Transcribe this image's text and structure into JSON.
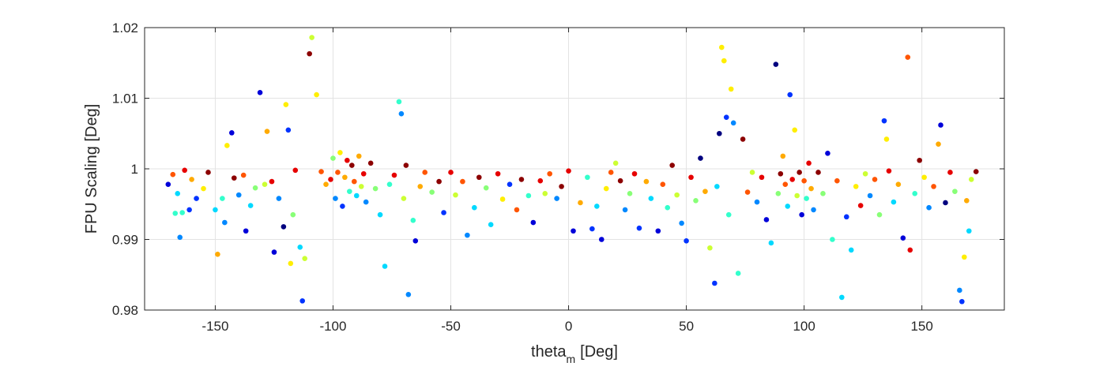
{
  "chart_data": {
    "type": "scatter",
    "title": "",
    "xlabel": "theta",
    "xlabel_subscript": "m",
    "xlabel_unit": "[Deg]",
    "ylabel": "FPU Scaling [Deg]",
    "xlim": [
      -180,
      185
    ],
    "ylim": [
      0.98,
      1.02
    ],
    "xticks": [
      -150,
      -100,
      -50,
      0,
      50,
      100,
      150
    ],
    "xtick_labels": [
      "-150",
      "-100",
      "-50",
      "0",
      "50",
      "100",
      "150"
    ],
    "yticks": [
      0.98,
      0.99,
      1.0,
      1.01,
      1.02
    ],
    "ytick_labels": [
      "0.98",
      "0.99",
      "1",
      "1.01",
      "1.02"
    ],
    "grid": true,
    "legend": "none",
    "colormap": "jet",
    "colors": [
      "#00007f",
      "#0000d9",
      "#0033ff",
      "#0088ff",
      "#00d9ff",
      "#33ffcc",
      "#88ff77",
      "#ccff33",
      "#ffee00",
      "#ffaa00",
      "#ff5500",
      "#e60000",
      "#8c0000"
    ],
    "points": [
      [
        -170,
        0.9978,
        1
      ],
      [
        -168,
        0.9992,
        10
      ],
      [
        -166,
        0.9965,
        4
      ],
      [
        -165,
        0.9903,
        3
      ],
      [
        -164,
        0.9938,
        5
      ],
      [
        -163,
        0.9998,
        11
      ],
      [
        -160,
        0.9985,
        9
      ],
      [
        -158,
        0.9958,
        2
      ],
      [
        -155,
        0.9972,
        8
      ],
      [
        -153,
        0.9995,
        12
      ],
      [
        -150,
        0.9942,
        4
      ],
      [
        -149,
        0.9879,
        9
      ],
      [
        -147,
        0.9958,
        5
      ],
      [
        -145,
        1.0033,
        8
      ],
      [
        -143,
        1.0051,
        1
      ],
      [
        -142,
        0.9987,
        12
      ],
      [
        -140,
        0.9963,
        3
      ],
      [
        -138,
        0.9991,
        10
      ],
      [
        -135,
        0.9948,
        4
      ],
      [
        -133,
        0.9973,
        6
      ],
      [
        -131,
        1.0108,
        1
      ],
      [
        -129,
        0.9978,
        7
      ],
      [
        -128,
        1.0053,
        9
      ],
      [
        -126,
        0.9982,
        11
      ],
      [
        -125,
        0.9882,
        1
      ],
      [
        -123,
        0.9958,
        3
      ],
      [
        -121,
        0.9918,
        0
      ],
      [
        -120,
        1.0091,
        8
      ],
      [
        -119,
        1.0055,
        2
      ],
      [
        -118,
        0.9866,
        8
      ],
      [
        -116,
        0.9998,
        11
      ],
      [
        -114,
        0.9889,
        4
      ],
      [
        -113,
        0.9813,
        2
      ],
      [
        -112,
        0.9873,
        7
      ],
      [
        -110,
        1.0163,
        12
      ],
      [
        -109,
        1.0186,
        7
      ],
      [
        -107,
        1.0105,
        8
      ],
      [
        -105,
        0.9996,
        10
      ],
      [
        -103,
        0.9978,
        9
      ],
      [
        -101,
        0.9985,
        11
      ],
      [
        -100,
        1.0015,
        6
      ],
      [
        -99,
        0.9958,
        3
      ],
      [
        -98,
        0.9995,
        10
      ],
      [
        -97,
        1.0023,
        8
      ],
      [
        -96,
        0.9947,
        2
      ],
      [
        -95,
        0.9988,
        9
      ],
      [
        -94,
        1.0012,
        11
      ],
      [
        -93,
        0.9968,
        5
      ],
      [
        -92,
        1.0005,
        12
      ],
      [
        -91,
        0.9982,
        10
      ],
      [
        -90,
        0.9962,
        4
      ],
      [
        -89,
        1.0018,
        9
      ],
      [
        -88,
        0.9975,
        7
      ],
      [
        -87,
        0.9993,
        11
      ],
      [
        -86,
        0.9953,
        3
      ],
      [
        -84,
        1.0008,
        12
      ],
      [
        -82,
        0.9972,
        6
      ],
      [
        -80,
        0.9935,
        4
      ],
      [
        -78,
        0.9862,
        4
      ],
      [
        -76,
        0.9978,
        5
      ],
      [
        -74,
        0.9991,
        11
      ],
      [
        -72,
        1.0095,
        5
      ],
      [
        -71,
        1.0078,
        3
      ],
      [
        -70,
        0.9958,
        7
      ],
      [
        -69,
        1.0005,
        12
      ],
      [
        -68,
        0.9822,
        3
      ],
      [
        -66,
        0.9927,
        5
      ],
      [
        -65,
        0.9898,
        1
      ],
      [
        -63,
        0.9975,
        9
      ],
      [
        -61,
        0.9995,
        10
      ],
      [
        -58,
        0.9967,
        6
      ],
      [
        -55,
        0.9982,
        12
      ],
      [
        -53,
        0.9938,
        2
      ],
      [
        -50,
        0.9995,
        11
      ],
      [
        -48,
        0.9963,
        7
      ],
      [
        -45,
        0.9982,
        10
      ],
      [
        -43,
        0.9906,
        3
      ],
      [
        -40,
        0.9945,
        4
      ],
      [
        -38,
        0.9988,
        12
      ],
      [
        -35,
        0.9973,
        6
      ],
      [
        -33,
        0.9921,
        4
      ],
      [
        -30,
        0.9993,
        11
      ],
      [
        -28,
        0.9957,
        8
      ],
      [
        -25,
        0.9978,
        2
      ],
      [
        -22,
        0.9942,
        10
      ],
      [
        -20,
        0.9985,
        12
      ],
      [
        -17,
        0.9962,
        5
      ],
      [
        -15,
        0.9924,
        1
      ],
      [
        -12,
        0.9983,
        11
      ],
      [
        -10,
        0.9965,
        7
      ],
      [
        -8,
        0.9993,
        10
      ],
      [
        -5,
        0.9958,
        3
      ],
      [
        -3,
        0.9975,
        12
      ],
      [
        0,
        0.9997,
        11
      ],
      [
        2,
        0.9912,
        1
      ],
      [
        5,
        0.9952,
        9
      ],
      [
        8,
        0.9988,
        5
      ],
      [
        10,
        0.9915,
        2
      ],
      [
        12,
        0.9947,
        4
      ],
      [
        14,
        0.99,
        1
      ],
      [
        16,
        0.9972,
        8
      ],
      [
        18,
        0.9995,
        10
      ],
      [
        20,
        1.0008,
        7
      ],
      [
        22,
        0.9983,
        12
      ],
      [
        24,
        0.9942,
        3
      ],
      [
        26,
        0.9965,
        6
      ],
      [
        28,
        0.9993,
        11
      ],
      [
        30,
        0.9916,
        2
      ],
      [
        33,
        0.9982,
        9
      ],
      [
        35,
        0.9958,
        4
      ],
      [
        38,
        0.9912,
        1
      ],
      [
        40,
        0.9978,
        10
      ],
      [
        42,
        0.9945,
        5
      ],
      [
        44,
        1.0005,
        12
      ],
      [
        46,
        0.9963,
        7
      ],
      [
        48,
        0.9923,
        3
      ],
      [
        50,
        0.9898,
        2
      ],
      [
        52,
        0.9988,
        11
      ],
      [
        54,
        0.9955,
        6
      ],
      [
        56,
        1.0015,
        0
      ],
      [
        58,
        0.9968,
        9
      ],
      [
        60,
        0.9888,
        7
      ],
      [
        62,
        0.9838,
        2
      ],
      [
        63,
        0.9975,
        4
      ],
      [
        64,
        1.005,
        0
      ],
      [
        65,
        1.0172,
        8
      ],
      [
        66,
        1.0153,
        8
      ],
      [
        67,
        1.0073,
        2
      ],
      [
        68,
        0.9935,
        5
      ],
      [
        69,
        1.0113,
        8
      ],
      [
        70,
        1.0065,
        3
      ],
      [
        72,
        0.9852,
        5
      ],
      [
        74,
        1.0042,
        12
      ],
      [
        76,
        0.9967,
        10
      ],
      [
        78,
        0.9995,
        7
      ],
      [
        80,
        0.9953,
        3
      ],
      [
        82,
        0.9988,
        11
      ],
      [
        84,
        0.9928,
        1
      ],
      [
        86,
        0.9895,
        4
      ],
      [
        88,
        1.0148,
        0
      ],
      [
        89,
        0.9965,
        6
      ],
      [
        90,
        0.9993,
        12
      ],
      [
        91,
        1.0018,
        9
      ],
      [
        92,
        0.9978,
        10
      ],
      [
        93,
        0.9947,
        4
      ],
      [
        94,
        1.0105,
        2
      ],
      [
        95,
        0.9985,
        11
      ],
      [
        96,
        1.0055,
        8
      ],
      [
        97,
        0.9962,
        7
      ],
      [
        98,
        0.9995,
        12
      ],
      [
        99,
        0.9935,
        1
      ],
      [
        100,
        0.9983,
        10
      ],
      [
        101,
        0.9958,
        5
      ],
      [
        102,
        1.0008,
        11
      ],
      [
        103,
        0.9972,
        9
      ],
      [
        104,
        0.9942,
        3
      ],
      [
        106,
        0.9995,
        12
      ],
      [
        108,
        0.9965,
        6
      ],
      [
        110,
        1.0022,
        1
      ],
      [
        112,
        0.99,
        5
      ],
      [
        114,
        0.9983,
        10
      ],
      [
        116,
        0.9818,
        4
      ],
      [
        118,
        0.9932,
        2
      ],
      [
        120,
        0.9885,
        4
      ],
      [
        122,
        0.9975,
        8
      ],
      [
        124,
        0.9948,
        11
      ],
      [
        126,
        0.9993,
        7
      ],
      [
        128,
        0.9962,
        3
      ],
      [
        130,
        0.9985,
        10
      ],
      [
        132,
        0.9935,
        6
      ],
      [
        134,
        1.0068,
        2
      ],
      [
        135,
        1.0042,
        8
      ],
      [
        136,
        0.9997,
        11
      ],
      [
        138,
        0.9953,
        4
      ],
      [
        140,
        0.9978,
        9
      ],
      [
        142,
        0.9902,
        1
      ],
      [
        144,
        1.0158,
        10
      ],
      [
        145,
        0.9885,
        11
      ],
      [
        147,
        0.9965,
        5
      ],
      [
        149,
        1.0012,
        12
      ],
      [
        151,
        0.9988,
        8
      ],
      [
        153,
        0.9945,
        3
      ],
      [
        155,
        0.9975,
        10
      ],
      [
        157,
        1.0035,
        9
      ],
      [
        158,
        1.0062,
        1
      ],
      [
        160,
        0.9952,
        0
      ],
      [
        162,
        0.9995,
        11
      ],
      [
        164,
        0.9968,
        6
      ],
      [
        166,
        0.9828,
        3
      ],
      [
        167,
        0.9812,
        2
      ],
      [
        168,
        0.9875,
        8
      ],
      [
        169,
        0.9955,
        9
      ],
      [
        170,
        0.9912,
        4
      ],
      [
        171,
        0.9985,
        7
      ],
      [
        173,
        0.9996,
        12
      ],
      [
        -167,
        0.9937,
        5
      ],
      [
        -161,
        0.9942,
        2
      ],
      [
        -146,
        0.9924,
        3
      ],
      [
        -137,
        0.9912,
        1
      ],
      [
        -117,
        0.9935,
        6
      ]
    ]
  }
}
